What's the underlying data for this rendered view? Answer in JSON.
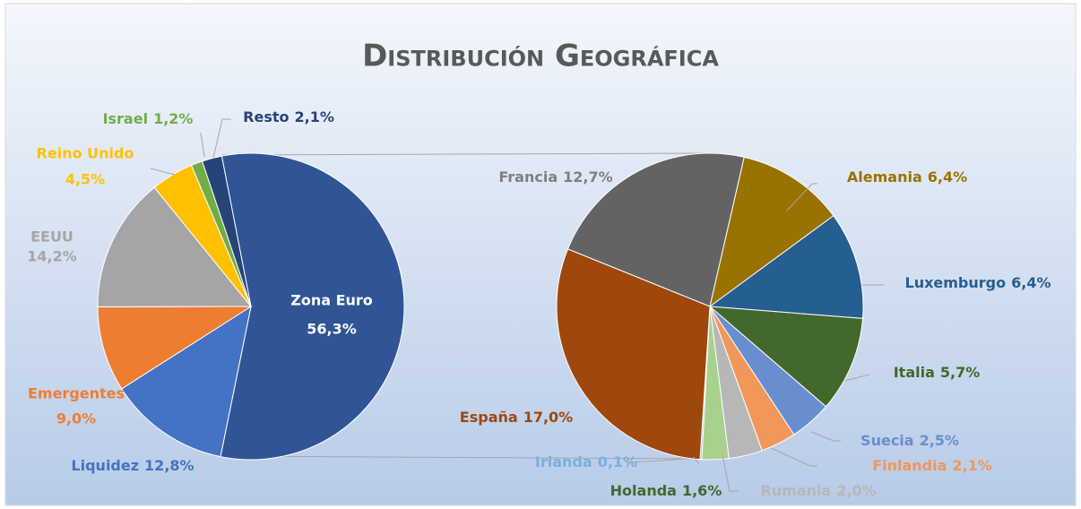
{
  "chart_data": {
    "type": "pie",
    "title": "Distribución Geográfica",
    "pies": [
      {
        "categories": [
          "Zona Euro",
          "Liquidez",
          "Emergentes",
          "EEUU",
          "Reino Unido",
          "Israel",
          "Resto"
        ],
        "values": [
          56.3,
          12.8,
          9.0,
          14.2,
          4.5,
          1.2,
          2.1
        ],
        "value_labels": [
          "56,3%",
          "12,8%",
          "9,0%",
          "14,2%",
          "4,5%",
          "1,2%",
          "2,1%"
        ],
        "colors": [
          "#2f5597",
          "#4472c4",
          "#ed7d31",
          "#a5a5a5",
          "#ffc000",
          "#70ad47",
          "#264478"
        ],
        "label_colors": [
          "#ffffff",
          "#4472c4",
          "#ed7d31",
          "#a5a5a5",
          "#ffc000",
          "#70ad47",
          "#264478"
        ]
      },
      {
        "categories": [
          "Francia",
          "Alemania",
          "Luxemburgo",
          "Italia",
          "Suecia",
          "Finlandia",
          "Rumania",
          "Holanda",
          "Irlanda",
          "España"
        ],
        "values": [
          12.7,
          6.4,
          6.4,
          5.7,
          2.5,
          2.1,
          2.0,
          1.6,
          0.1,
          17.0
        ],
        "value_labels": [
          "12,7%",
          "6,4%",
          "6,4%",
          "5,7%",
          "2,5%",
          "2,1%",
          "2,0%",
          "1,6%",
          "0,1%",
          "17,0%"
        ],
        "colors": [
          "#636363",
          "#997300",
          "#255e91",
          "#43682b",
          "#698ed0",
          "#f1975a",
          "#b7b7b7",
          "#a9d18e",
          "#7cafdd",
          "#9e480e"
        ],
        "label_colors": [
          "#7f7f7f",
          "#997300",
          "#255e91",
          "#43682b",
          "#698ed0",
          "#f1975a",
          "#b7b7b7",
          "#43682b",
          "#7cafdd",
          "#9e480e"
        ]
      }
    ]
  }
}
